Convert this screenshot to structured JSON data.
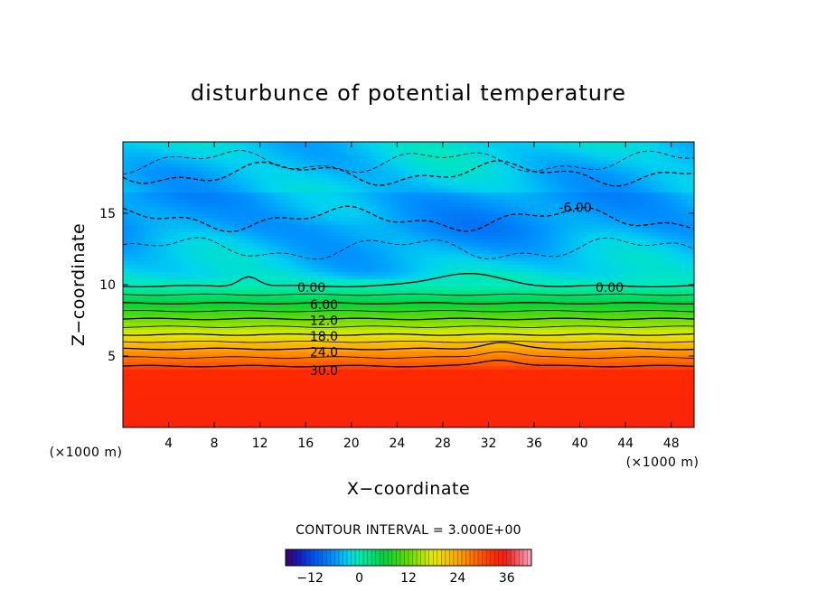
{
  "chart_data": {
    "type": "contour",
    "title": "disturbunce of potential temperature",
    "xlabel": "X−coordinate",
    "ylabel": "Z−coordinate",
    "x_unit_label": "(×1000 m)",
    "x_unit_label_right": "(×1000 m)",
    "xlim": [
      0,
      50
    ],
    "ylim": [
      0,
      20
    ],
    "x_ticks": [
      4,
      8,
      12,
      16,
      20,
      24,
      28,
      32,
      36,
      40,
      44,
      48
    ],
    "y_ticks": [
      5,
      10,
      15
    ],
    "contour_interval_text": "CONTOUR INTERVAL = 3.000E+00",
    "contour_interval": 3.0,
    "value_range": [
      -18,
      39
    ],
    "contour_labels": [
      {
        "text": "0.00",
        "x": 16.5,
        "z": 9.8
      },
      {
        "text": "6.00",
        "x": 17.6,
        "z": 8.6
      },
      {
        "text": "12.0",
        "x": 17.6,
        "z": 7.5
      },
      {
        "text": "18.0",
        "x": 17.6,
        "z": 6.4
      },
      {
        "text": "24.0",
        "x": 17.6,
        "z": 5.3
      },
      {
        "text": "30.0",
        "x": 17.6,
        "z": 4.0
      },
      {
        "text": "0.00",
        "x": 42.6,
        "z": 9.8
      },
      {
        "text": "-6.00",
        "x": 39.6,
        "z": 15.4
      }
    ],
    "colorbar": {
      "ticks": [
        -12,
        0,
        12,
        24,
        36
      ],
      "range": [
        -18,
        42
      ]
    },
    "profile": [
      {
        "z": 0,
        "value": 34
      },
      {
        "z": 4,
        "value": 33
      },
      {
        "z": 4.3,
        "value": 30
      },
      {
        "z": 5.5,
        "value": 24
      },
      {
        "z": 6.5,
        "value": 18
      },
      {
        "z": 7.6,
        "value": 12
      },
      {
        "z": 8.7,
        "value": 6
      },
      {
        "z": 9.9,
        "value": 0
      },
      {
        "z": 11,
        "value": -3
      },
      {
        "z": 14,
        "value": -6
      },
      {
        "z": 18,
        "value": -5
      },
      {
        "z": 20,
        "value": -4
      }
    ]
  }
}
